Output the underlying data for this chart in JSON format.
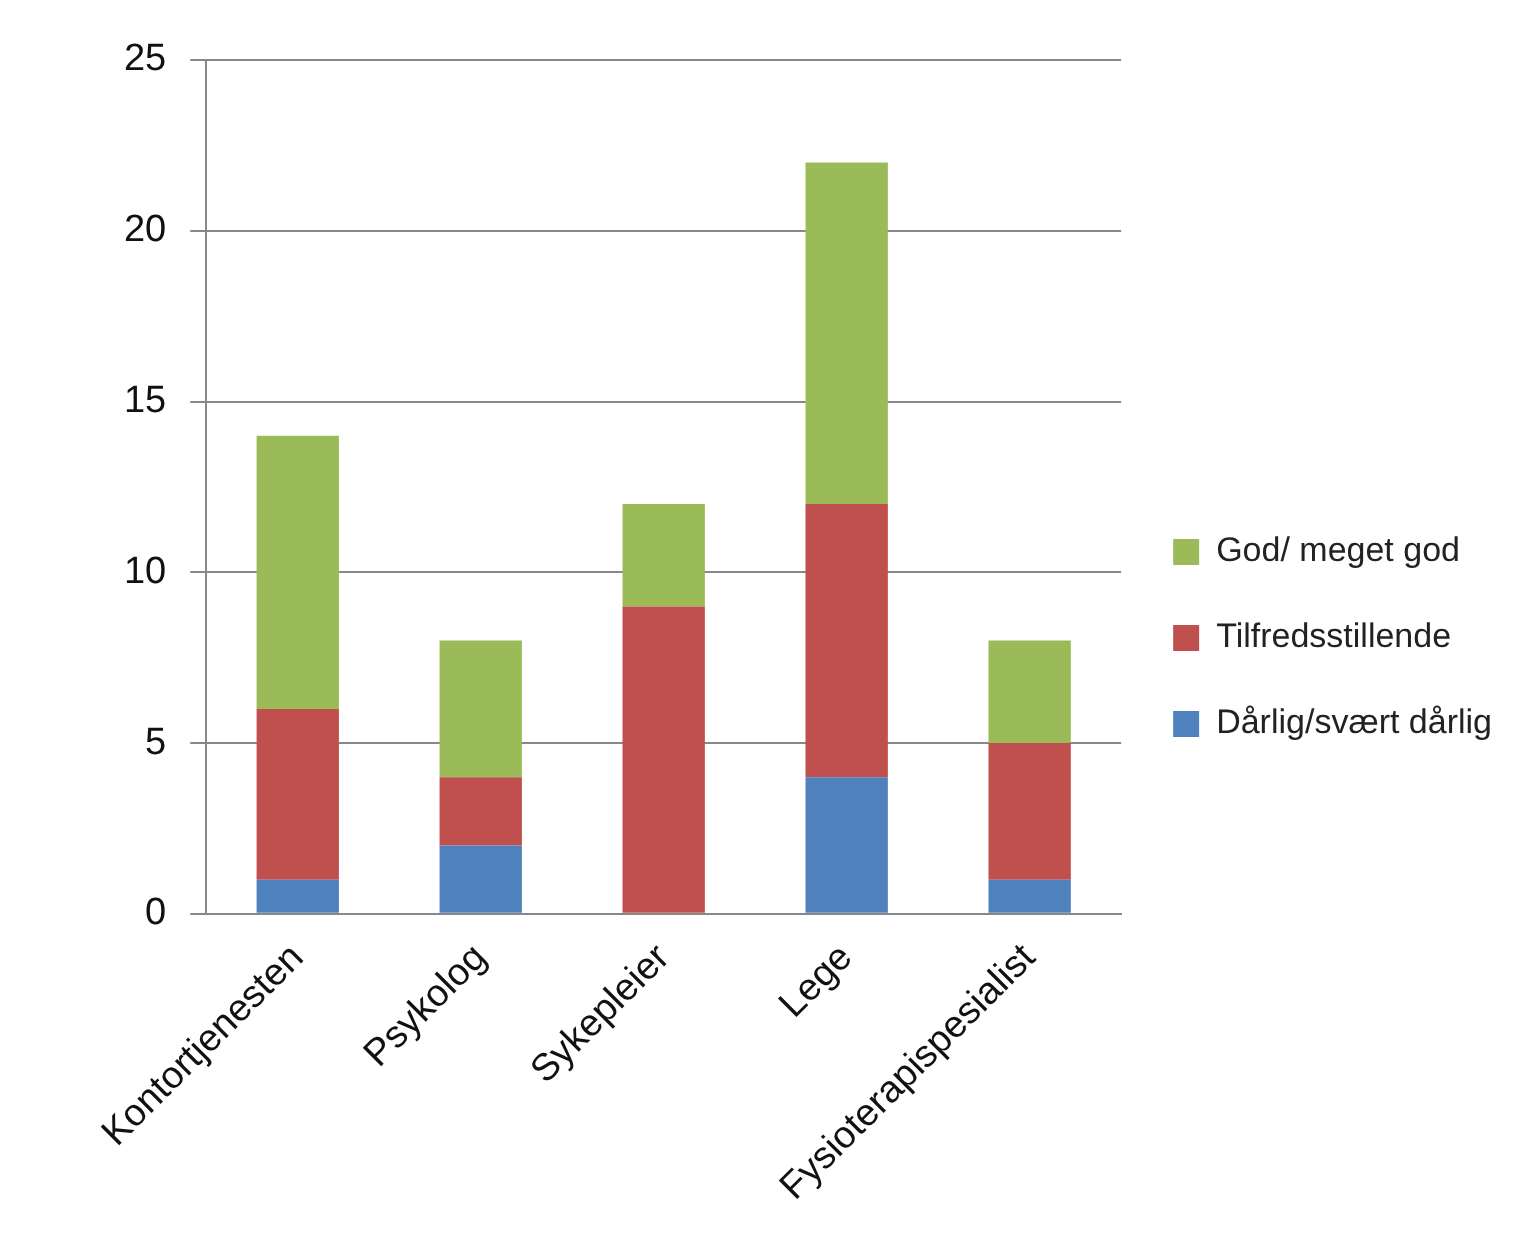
{
  "chart_data": {
    "type": "bar",
    "stacked": true,
    "categories": [
      "Kontortjenesten",
      "Psykolog",
      "Sykepleier",
      "Lege",
      "Fysioterapispesialist"
    ],
    "series": [
      {
        "name": "Dårlig/svært dårlig",
        "color": "#4f81bd",
        "values": [
          1,
          2,
          0,
          4,
          1
        ]
      },
      {
        "name": "Tilfredsstillende",
        "color": "#c0504d",
        "values": [
          5,
          2,
          9,
          8,
          4
        ]
      },
      {
        "name": "God/ meget god",
        "color": "#9bbb59",
        "values": [
          8,
          4,
          3,
          10,
          3
        ]
      }
    ],
    "ylim": [
      0,
      25
    ],
    "yticks": [
      0,
      5,
      10,
      15,
      20,
      25
    ],
    "grid": "y",
    "legend": "right"
  }
}
